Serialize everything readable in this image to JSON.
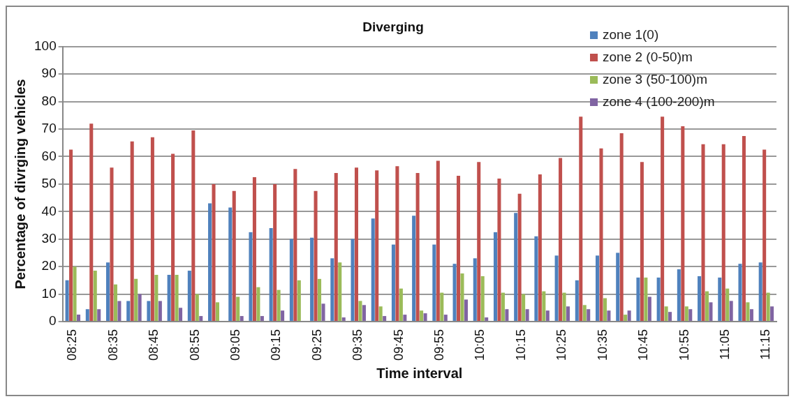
{
  "chart_data": {
    "type": "bar",
    "title": "Diverging",
    "xlabel": "Time interval",
    "ylabel": "Percentage of divrging vehicles",
    "categories": [
      "08:25",
      null,
      "08:35",
      null,
      "08:45",
      null,
      "08:55",
      null,
      "09:05",
      null,
      "09:15",
      null,
      "09:25",
      null,
      "09:35",
      null,
      "09:45",
      null,
      "09:55",
      null,
      "10:05",
      null,
      "10:15",
      null,
      "10:25",
      null,
      "10:35",
      null,
      "10:45",
      null,
      "10:55",
      null,
      "11:05",
      null,
      "11:15"
    ],
    "series": [
      {
        "name": "zone 1(0)",
        "color": "#4f81bd",
        "values": [
          15,
          4.5,
          21.5,
          7.5,
          7.5,
          17,
          18.5,
          43,
          41.5,
          32.5,
          34,
          30,
          30.5,
          23,
          30,
          37.5,
          28,
          38.5,
          28,
          21,
          23,
          32.5,
          39.5,
          31,
          24,
          15,
          24,
          25,
          16,
          16,
          19,
          16.5,
          16,
          21,
          21.5
        ]
      },
      {
        "name": "zone 2 (0-50)m",
        "color": "#c0504d",
        "values": [
          62.5,
          72,
          56,
          65.5,
          67,
          61,
          69.5,
          50,
          47.5,
          52.5,
          50,
          55.5,
          47.5,
          54,
          56,
          55,
          56.5,
          54,
          58.5,
          53,
          58,
          52,
          46.5,
          53.5,
          59.5,
          74.5,
          63,
          68.5,
          58,
          74.5,
          71,
          64.5,
          64.5,
          67.5,
          62.5
        ]
      },
      {
        "name": "zone 3 (50-100)m",
        "color": "#9bbb59",
        "values": [
          20,
          18.5,
          13.5,
          15.5,
          17,
          17,
          10,
          7,
          9,
          12.5,
          11.5,
          15,
          15.5,
          21.5,
          7.5,
          5.5,
          12,
          4,
          10.5,
          17.5,
          16.5,
          10.5,
          10,
          11,
          10.5,
          6,
          8.5,
          2.5,
          16,
          5.5,
          5.5,
          11,
          12,
          7,
          10.5
        ]
      },
      {
        "name": "zone 4 (100-200)m",
        "color": "#8064a2",
        "values": [
          2.5,
          4.5,
          7.5,
          10,
          7.5,
          5,
          2,
          0,
          2,
          2,
          4,
          0,
          6.5,
          1.5,
          6,
          2,
          2.5,
          3,
          2.5,
          8,
          1.5,
          4.5,
          4.5,
          4,
          5.5,
          4.5,
          4,
          4,
          9,
          3.5,
          4.5,
          7,
          7.5,
          4.5,
          5.5
        ]
      }
    ],
    "ylim": [
      0,
      100
    ],
    "yticks": [
      0,
      10,
      20,
      30,
      40,
      50,
      60,
      70,
      80,
      90,
      100
    ],
    "grid": "y",
    "legend": "top right"
  }
}
